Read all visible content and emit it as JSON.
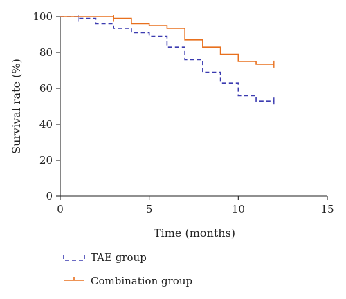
{
  "chart_data": {
    "type": "line",
    "xlabel": "Time (months)",
    "ylabel": "Survival rate (%)",
    "xlim": [
      0,
      15
    ],
    "ylim": [
      0,
      100
    ],
    "xticks": [
      0,
      5,
      10,
      15
    ],
    "yticks": [
      0,
      20,
      40,
      60,
      80,
      100
    ],
    "grid": false,
    "legend_position": "bottom-left",
    "series": [
      {
        "name": "TAE group",
        "color": "#3b3bb0",
        "line_style": "dashed",
        "step": true,
        "x": [
          0,
          1,
          2,
          3,
          4,
          5,
          6,
          7,
          8,
          9,
          10,
          11,
          12
        ],
        "y": [
          100,
          99,
          96,
          93.5,
          91,
          89,
          83,
          76,
          69,
          63,
          56,
          53,
          53
        ],
        "censor_x": [
          1,
          12
        ],
        "censor_y": [
          99,
          53
        ]
      },
      {
        "name": "Combination group",
        "color": "#e8701e",
        "line_style": "solid",
        "step": true,
        "x": [
          0,
          3,
          4,
          5,
          6,
          7,
          8,
          9,
          10,
          11,
          12
        ],
        "y": [
          100,
          99,
          96,
          95,
          93.5,
          87,
          83,
          79,
          75,
          73.5,
          73.5
        ],
        "censor_x": [
          3,
          12
        ],
        "censor_y": [
          99,
          73.5
        ]
      }
    ]
  }
}
